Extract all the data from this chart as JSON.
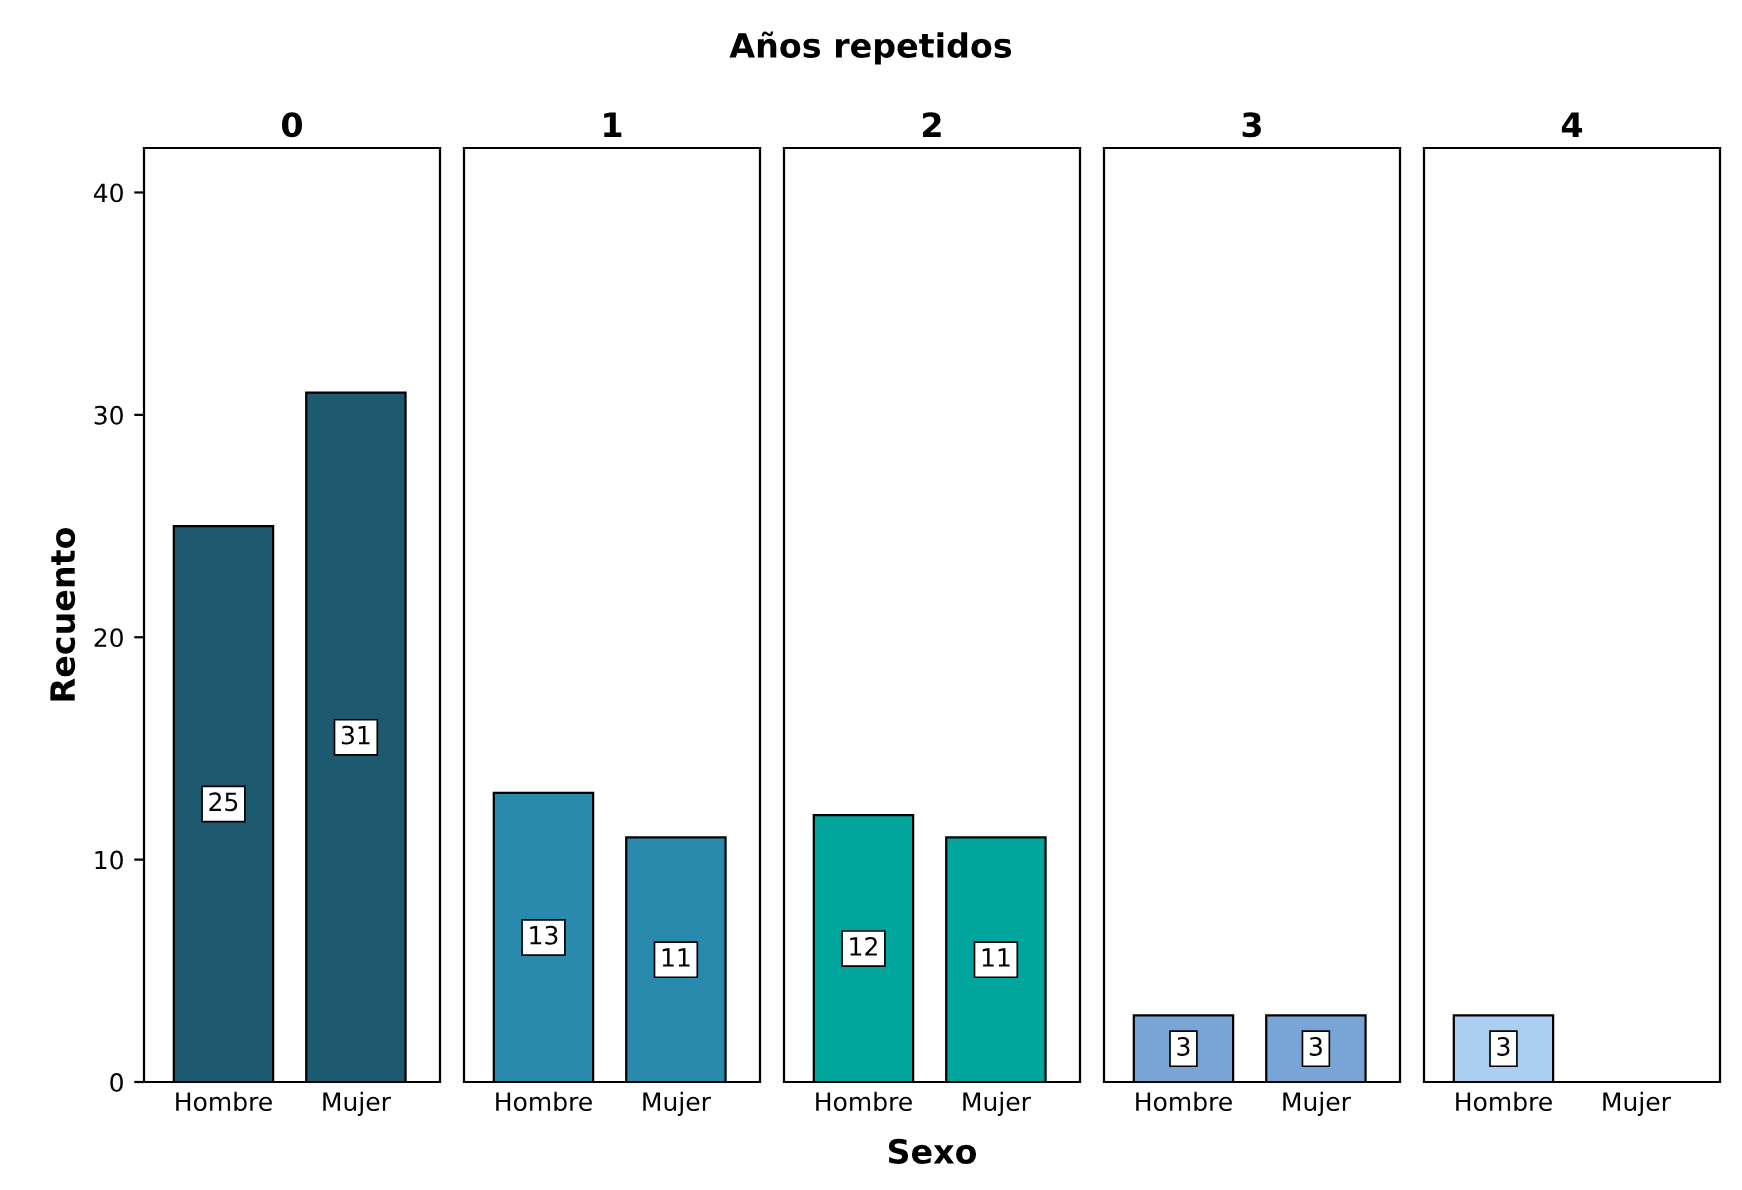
{
  "chart_data": [
    {
      "type": "bar",
      "title": "0",
      "annotations": [
        "Años repetidos"
      ],
      "ylabel": "Recuento",
      "categories": [
        "Hombre",
        "Mujer"
      ],
      "values": [
        25,
        31
      ],
      "color": "#1d5a70",
      "ylim": [
        0,
        42
      ],
      "yticks": [
        0,
        10,
        20,
        30,
        40
      ],
      "data_labels": true,
      "grid": false,
      "legend": false
    },
    {
      "type": "bar",
      "title": "1",
      "categories": [
        "Hombre",
        "Mujer"
      ],
      "values": [
        13,
        11
      ],
      "color": "#2a8aad",
      "ylim": [
        0,
        42
      ],
      "data_labels": true,
      "tick_labels": "x",
      "grid": false,
      "legend": false
    },
    {
      "type": "bar",
      "title": "2",
      "xlabel": "Sexo",
      "categories": [
        "Hombre",
        "Mujer"
      ],
      "values": [
        12,
        11
      ],
      "color": "#00a69c",
      "ylim": [
        0,
        42
      ],
      "data_labels": true,
      "tick_labels": "x",
      "grid": false,
      "legend": false
    },
    {
      "type": "bar",
      "title": "3",
      "categories": [
        "Hombre",
        "Mujer"
      ],
      "values": [
        3,
        3
      ],
      "color": "#78a5d6",
      "ylim": [
        0,
        42
      ],
      "data_labels": true,
      "tick_labels": "x",
      "grid": false,
      "legend": false
    },
    {
      "type": "bar",
      "title": "4",
      "categories": [
        "Hombre",
        "Mujer"
      ],
      "values": [
        3,
        null
      ],
      "color": "#aacff0",
      "ylim": [
        0,
        42
      ],
      "data_labels": true,
      "tick_labels": "x",
      "grid": false,
      "legend": false
    }
  ]
}
